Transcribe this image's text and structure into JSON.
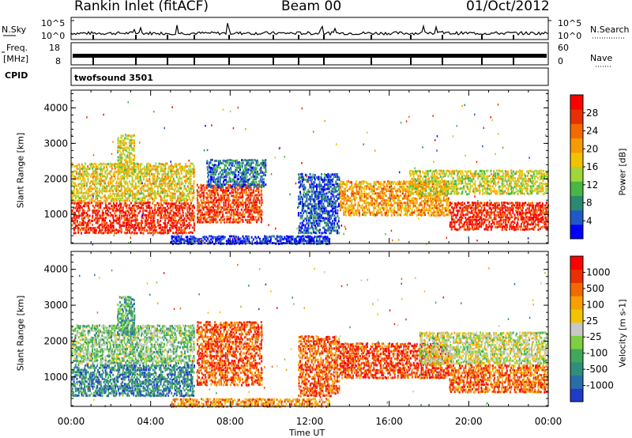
{
  "header": {
    "station": "Rankin Inlet (fitACF)",
    "beam": "Beam 00",
    "date": "01/Oct/2012"
  },
  "status": {
    "nsky_label": "N.Sky",
    "nsky_ticks": [
      "10^5",
      "10^0"
    ],
    "nsearch_label": "N.Search",
    "nsearch_ticks": [
      "10^5",
      "10^0"
    ],
    "freq_label": "Freq.",
    "freq_unit": "[MHz]",
    "freq_ticks": [
      "18",
      "8"
    ],
    "nave_label": "Nave",
    "nave_ticks": [
      "60",
      "0"
    ],
    "cpid_label": "CPID",
    "cpid_value": "twofsound 3501"
  },
  "chart_data": [
    {
      "type": "heatmap",
      "panel": "power",
      "ylabel": "Slant Range [km]",
      "xlabel": "",
      "x_range": [
        "00:00",
        "24:00"
      ],
      "ylim": [
        180,
        4500
      ],
      "yticks": [
        "1000",
        "2000",
        "3000",
        "4000"
      ],
      "colorbar_label": "Power [dB]",
      "colorbar_ticks": [
        "28",
        "24",
        "20",
        "16",
        "12",
        "8",
        "4"
      ],
      "colors": [
        "#0000ff",
        "#1f58c8",
        "#2a8a6e",
        "#46b843",
        "#9fd63a",
        "#f2c300",
        "#f79a00",
        "#f26a00",
        "#e83000",
        "#ff0000"
      ],
      "regions": [
        {
          "t0": 0.0,
          "t1": 6.2,
          "r0": 500,
          "r1": 1400,
          "level": 0.9
        },
        {
          "t0": 0.0,
          "t1": 6.2,
          "r0": 1400,
          "r1": 2500,
          "level": 0.55
        },
        {
          "t0": 2.3,
          "t1": 3.2,
          "r0": 2200,
          "r1": 3300,
          "level": 0.5
        },
        {
          "t0": 6.3,
          "t1": 9.6,
          "r0": 800,
          "r1": 1900,
          "level": 0.85
        },
        {
          "t0": 6.8,
          "t1": 9.8,
          "r0": 1800,
          "r1": 2600,
          "level": 0.2
        },
        {
          "t0": 11.4,
          "t1": 13.5,
          "r0": 500,
          "r1": 2200,
          "level": 0.15
        },
        {
          "t0": 13.5,
          "t1": 19.0,
          "r0": 1000,
          "r1": 2000,
          "level": 0.65
        },
        {
          "t0": 17.0,
          "t1": 24.0,
          "r0": 1600,
          "r1": 2300,
          "level": 0.5
        },
        {
          "t0": 19.0,
          "t1": 24.0,
          "r0": 600,
          "r1": 1400,
          "level": 0.9
        },
        {
          "t0": 5.0,
          "t1": 13.0,
          "r0": 200,
          "r1": 450,
          "level": 0.05
        }
      ]
    },
    {
      "type": "heatmap",
      "panel": "velocity",
      "ylabel": "Slant Range [km]",
      "xlabel": "Time UT",
      "x_range": [
        "00:00",
        "24:00"
      ],
      "xticks": [
        "00:00",
        "04:00",
        "08:00",
        "12:00",
        "16:00",
        "20:00",
        "00:00"
      ],
      "ylim": [
        180,
        4500
      ],
      "yticks": [
        "1000",
        "2000",
        "3000",
        "4000"
      ],
      "colorbar_label": "Velocity [m s-1]",
      "colorbar_ticks": [
        "1000",
        "500",
        "100",
        "25",
        "-25",
        "-100",
        "-500",
        "-1000"
      ],
      "colors": [
        "#1f3cc8",
        "#2a6ea8",
        "#2f8f7a",
        "#3fa85a",
        "#7ed040",
        "#c8c8c8",
        "#f2c300",
        "#f7a000",
        "#f06a00",
        "#e83000",
        "#ff0000"
      ],
      "regions": [
        {
          "t0": 0.0,
          "t1": 6.2,
          "r0": 500,
          "r1": 1400,
          "level": 0.2
        },
        {
          "t0": 0.0,
          "t1": 6.2,
          "r0": 1400,
          "r1": 2500,
          "level": 0.4
        },
        {
          "t0": 2.3,
          "t1": 3.2,
          "r0": 2200,
          "r1": 3300,
          "level": 0.3
        },
        {
          "t0": 6.3,
          "t1": 9.6,
          "r0": 800,
          "r1": 2600,
          "level": 0.82
        },
        {
          "t0": 11.4,
          "t1": 13.5,
          "r0": 500,
          "r1": 2200,
          "level": 0.8
        },
        {
          "t0": 13.5,
          "t1": 19.0,
          "r0": 1000,
          "r1": 2000,
          "level": 0.85
        },
        {
          "t0": 17.5,
          "t1": 24.0,
          "r0": 1400,
          "r1": 2300,
          "level": 0.5
        },
        {
          "t0": 19.0,
          "t1": 24.0,
          "r0": 600,
          "r1": 1400,
          "level": 0.78
        },
        {
          "t0": 5.0,
          "t1": 13.0,
          "r0": 200,
          "r1": 450,
          "level": 0.7
        }
      ]
    }
  ]
}
